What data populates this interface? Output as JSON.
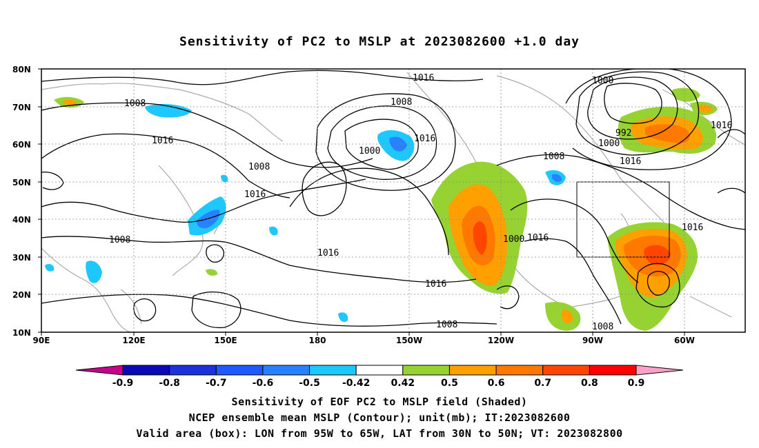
{
  "title": "Sensitivity of PC2 to MSLP at 2023082600 +1.0 day",
  "lat_labels": [
    "80N",
    "70N",
    "60N",
    "50N",
    "40N",
    "30N",
    "20N",
    "10N"
  ],
  "lon_labels": [
    "90E",
    "120E",
    "150E",
    "180",
    "150W",
    "120W",
    "90W",
    "60W"
  ],
  "colorbar": {
    "colors": [
      "#c8008c",
      "#0a0ab4",
      "#1e32dc",
      "#1e5aff",
      "#2882ff",
      "#1ec8ff",
      "#ffffff",
      "#96d232",
      "#ffa000",
      "#ff7800",
      "#ff4600",
      "#ff0000",
      "#ffa0c8"
    ],
    "labels": [
      "-0.9",
      "-0.8",
      "-0.7",
      "-0.6",
      "-0.5",
      "-0.42",
      "0.42",
      "0.5",
      "0.6",
      "0.7",
      "0.8",
      "0.9"
    ]
  },
  "contour_labels": [
    "1016",
    "1008",
    "1008",
    "1016",
    "1008",
    "1000",
    "1016",
    "1016",
    "1008",
    "1016",
    "1000",
    "992",
    "1000",
    "1016",
    "1008",
    "1016",
    "1016",
    "1016",
    "1008",
    "1000",
    "1016",
    "1008"
  ],
  "footer": {
    "line1": "Sensitivity of EOF PC2 to MSLP field (Shaded)",
    "line2": "NCEP ensemble mean MSLP (Contour); unit(mb); IT:2023082600",
    "line3": "Valid area (box): LON from 95W to 65W, LAT from 30N to 50N; VT: 2023082800"
  },
  "colors": {
    "green": "#96d232",
    "orange": "#ffa000",
    "dark_orange": "#ff7800",
    "red_orange": "#ff4600",
    "light_blue": "#1ec8ff",
    "blue": "#2882ff",
    "coast": "#aaaaaa"
  }
}
